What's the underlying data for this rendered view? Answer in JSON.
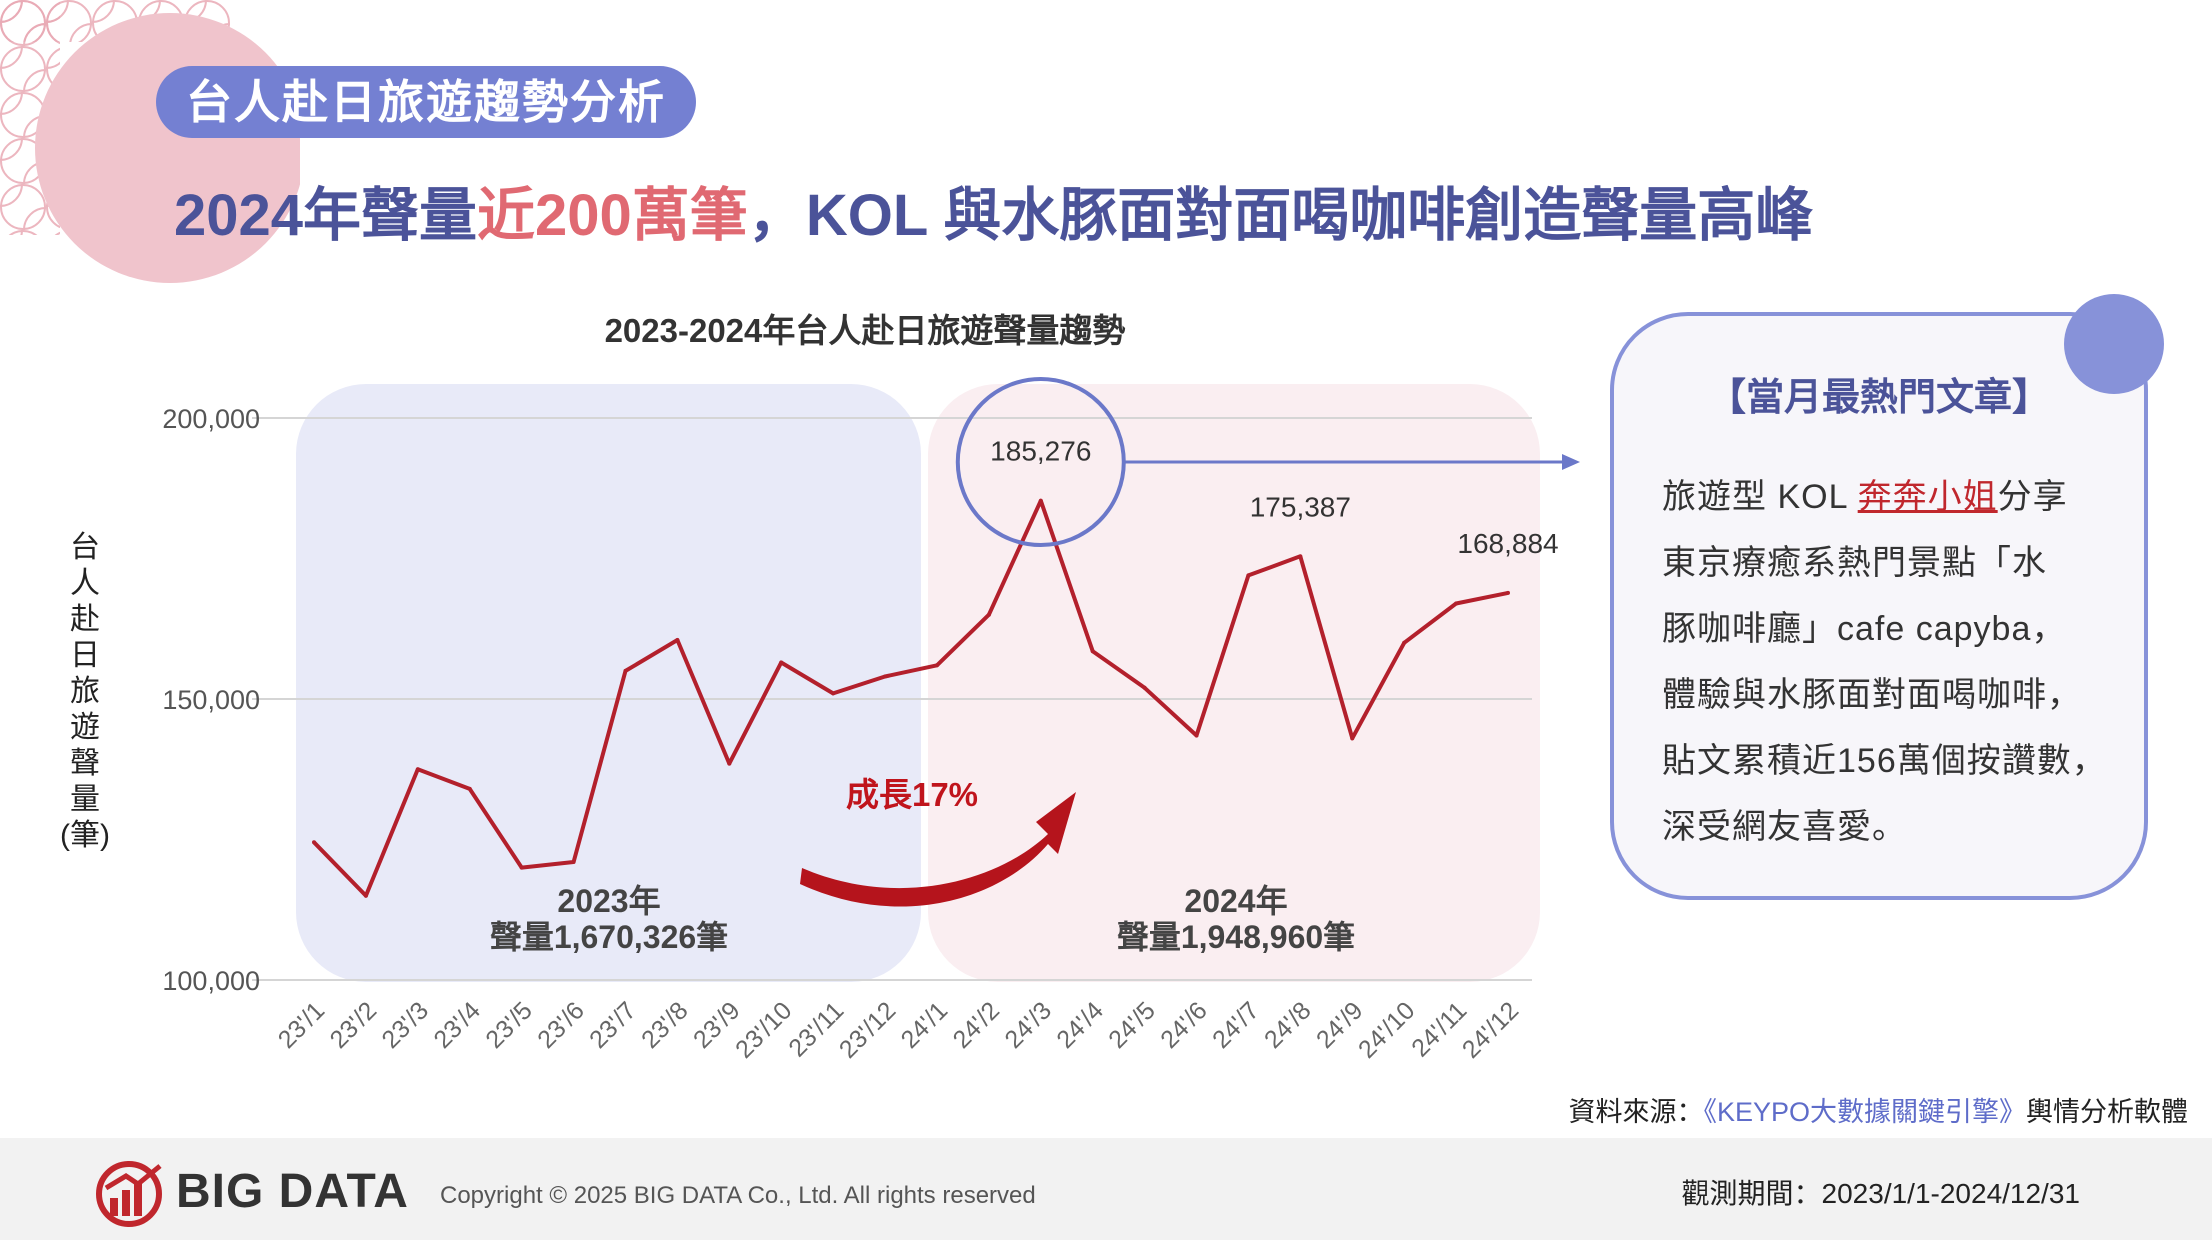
{
  "section_tag": "台人赴日旅遊趨勢分析",
  "headline": {
    "part1": "2024年聲量",
    "highlight": "近200萬筆",
    "part2": "，KOL 與水豚面對面喝咖啡創造聲量高峰"
  },
  "chart_data": {
    "type": "line",
    "title": "2023-2024年台人赴日旅遊聲量趨勢",
    "ylabel": "台人赴日旅遊聲量(筆)",
    "ylabel_chars": [
      "台",
      "人",
      "赴",
      "日",
      "旅",
      "遊",
      "聲",
      "量",
      "(筆)"
    ],
    "ylim": [
      100000,
      200000
    ],
    "yticks": [
      100000,
      150000,
      200000
    ],
    "ytick_labels": [
      "100,000",
      "150,000",
      "200,000"
    ],
    "categories": [
      "23'/1",
      "23'/2",
      "23'/3",
      "23'/4",
      "23'/5",
      "23'/6",
      "23'/7",
      "23'/8",
      "23'/9",
      "23'/10",
      "23'/11",
      "23'/12",
      "24'/1",
      "24'/2",
      "24'/3",
      "24'/4",
      "24'/5",
      "24'/6",
      "24'/7",
      "24'/8",
      "24'/9",
      "24'/10",
      "24'/11",
      "24'/12"
    ],
    "series": [
      {
        "name": "台人赴日旅遊聲量",
        "color": "#b3202c",
        "values": [
          124500,
          115000,
          137500,
          134000,
          120000,
          121000,
          155000,
          160500,
          138500,
          156500,
          151000,
          154000,
          156000,
          165000,
          185276,
          158500,
          152000,
          143500,
          172000,
          175387,
          143000,
          160000,
          167000,
          168884
        ]
      }
    ],
    "data_labels": [
      {
        "index": 14,
        "text": "185,276"
      },
      {
        "index": 19,
        "text": "175,387"
      },
      {
        "index": 23,
        "text": "168,884"
      }
    ],
    "highlight_index": 14,
    "regions": [
      {
        "year": "2023年",
        "total": "聲量1,670,326筆",
        "color": "#e8eaf8"
      },
      {
        "year": "2024年",
        "total": "聲量1,948,960筆",
        "color": "#faeef1"
      }
    ],
    "growth_label": "成長17%",
    "grid": true
  },
  "card": {
    "title": "【當月最熱門文章】",
    "lines": [
      {
        "pre": "旅遊型 KOL ",
        "link": "奔奔小姐",
        "post": "分享"
      },
      {
        "pre": "東京療癒系熱門景點「水"
      },
      {
        "pre": "豚咖啡廳」cafe capyba，"
      },
      {
        "pre": "體驗與水豚面對面喝咖啡，"
      },
      {
        "pre": "貼文累積近156萬個按讚數，"
      },
      {
        "pre": "深受網友喜愛。"
      }
    ]
  },
  "source": {
    "label": "資料來源：",
    "link": "《KEYPO大數據關鍵引擎》",
    "suffix": "輿情分析軟體"
  },
  "footer": {
    "brand": "BIG DATA",
    "copyright": "Copyright © 2025 BIG DATA Co., Ltd. All rights reserved",
    "period": "觀測期間：2023/1/1-2024/12/31"
  },
  "colors": {
    "accent": "#4b5399",
    "tag_bg": "#7480d2",
    "highlight": "#e06972",
    "line": "#b3202c",
    "card_border": "#8792d9"
  }
}
